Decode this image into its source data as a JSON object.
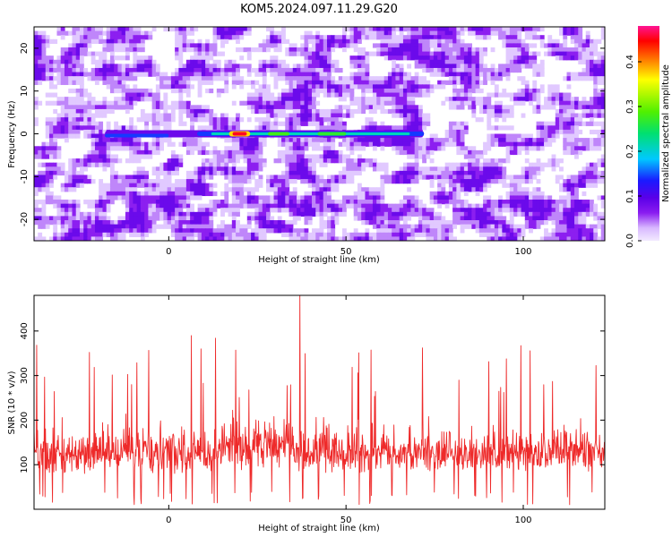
{
  "title": "KOM5.2024.097.11.29.G20",
  "colors": {
    "snr_line": "#ee2a2a",
    "axis": "#000000"
  },
  "chart_data": [
    {
      "type": "heatmap",
      "title": "KOM5.2024.097.11.29.G20",
      "xlabel": "Height of straight line (km)",
      "ylabel": "Frequency (Hz)",
      "xlim": [
        -38,
        123
      ],
      "ylim": [
        -25,
        25
      ],
      "xticks": [
        "0",
        "50",
        "100"
      ],
      "yticks": [
        "-20",
        "-10",
        "0",
        "10",
        "20"
      ],
      "colorbar": {
        "label": "Normalized spectral amplitude",
        "range": [
          0,
          0.48
        ],
        "ticks": [
          "0.0",
          "0.1",
          "0.2",
          "0.3",
          "0.4"
        ],
        "colors": [
          "#f2eaff",
          "#d8b8ff",
          "#8a1cf0",
          "#5a00e8",
          "#1a1aff",
          "#00c8ff",
          "#00e070",
          "#50f000",
          "#ffff00",
          "#ff7000",
          "#ff0000",
          "#ff1493"
        ]
      },
      "signal_trace": {
        "frequency_hz": 0,
        "height_range_km": [
          -18,
          72
        ],
        "peak_height_km": 20,
        "peak_amplitude": 0.45
      }
    },
    {
      "type": "line",
      "xlabel": "Height of straight line (km)",
      "ylabel": "SNR (10 * v/v)",
      "xlim": [
        -38,
        123
      ],
      "ylim": [
        0,
        480
      ],
      "xticks": [
        "0",
        "50",
        "100"
      ],
      "yticks": [
        "100",
        "200",
        "300",
        "400"
      ],
      "series": [
        {
          "color": "#ee2a2a",
          "samples": 1300,
          "typical_range": [
            40,
            250
          ],
          "max_value": 480,
          "max_at_height_km": 37
        }
      ]
    }
  ]
}
